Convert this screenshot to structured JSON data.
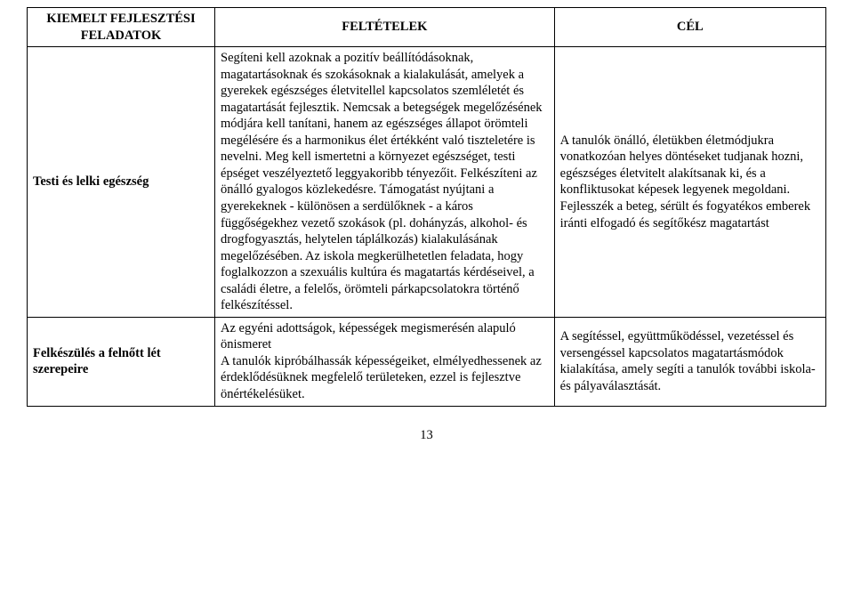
{
  "table": {
    "headers": {
      "col1_line1": "KIEMELT FEJLESZTÉSI",
      "col1_line2": "FELADATOK",
      "col2": "FELTÉTELEK",
      "col3": "CÉL"
    },
    "rows": [
      {
        "label": "Testi és lelki egészség",
        "conditions": "Segíteni kell azoknak a pozitív beállítódásoknak, magatartásoknak és szokásoknak a kialakulását, amelyek a gyerekek egészséges életvitellel kapcsolatos szemléletét és magatartását fejlesztik. Nemcsak a betegségek megelőzésének módjára kell tanítani, hanem az egészséges állapot örömteli megélésére és a harmonikus élet értékként való tiszteletére is nevelni. Meg kell ismertetni a környezet egészséget, testi épséget veszélyeztető leggyakoribb tényezőit. Felkészíteni az önálló gyalogos közlekedésre. Támogatást nyújtani a gyerekeknek - különösen a serdülőknek - a káros függőségekhez vezető szokások (pl. dohányzás, alkohol- és drogfogyasztás, helytelen táplálkozás) kialakulásának megelőzésében. Az iskola megkerülhetetlen feladata, hogy foglalkozzon a szexuális kultúra és magatartás kérdéseivel, a családi életre, a felelős, örömteli párkapcsolatokra történő felkészítéssel.",
        "goal": "A tanulók önálló, életükben életmódjukra vonatkozóan helyes döntéseket tudjanak hozni, egészséges életvitelt alakítsanak ki, és a konfliktusokat képesek legyenek megoldani. Fejlesszék a beteg, sérült és fogyatékos emberek iránti elfogadó és segítőkész magatartást"
      },
      {
        "label": "Felkészülés a felnőtt lét szerepeire",
        "conditions": "Az egyéni adottságok, képességek megismerésén alapuló önismeret\nA tanulók kipróbálhassák képességeiket, elmélyedhessenek az érdeklődésüknek megfelelő területeken, ezzel is fejlesztve önértékelésüket.",
        "goal": "A segítéssel, együttműködéssel, vezetéssel és versengéssel kapcsolatos magatartásmódok kialakítása, amely segíti a tanulók további iskola- és pályaválasztását."
      }
    ]
  },
  "styling": {
    "font_family": "Times New Roman",
    "font_size_pt": 11,
    "border_color": "#000000",
    "background_color": "#ffffff",
    "text_color": "#000000"
  },
  "page_number": "13"
}
